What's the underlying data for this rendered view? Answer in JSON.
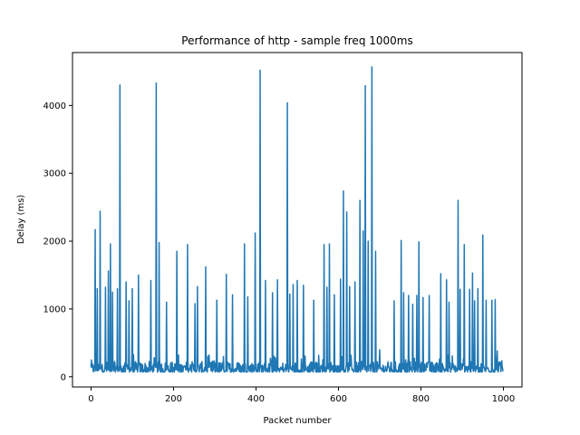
{
  "chart_data": {
    "type": "line",
    "title": "Performance of http - sample freq 1000ms",
    "xlabel": "Packet number",
    "ylabel": "Delay (ms)",
    "xlim": [
      -45,
      1045
    ],
    "ylim": [
      -150,
      4780
    ],
    "xticks": [
      0,
      200,
      400,
      600,
      800,
      1000
    ],
    "yticks": [
      0,
      1000,
      2000,
      3000,
      4000
    ],
    "grid": false,
    "series_color": "#1f77b4",
    "spikes": [
      {
        "x": 10,
        "y": 2170
      },
      {
        "x": 15,
        "y": 1300
      },
      {
        "x": 22,
        "y": 2440
      },
      {
        "x": 35,
        "y": 1320
      },
      {
        "x": 42,
        "y": 1560
      },
      {
        "x": 47,
        "y": 1960
      },
      {
        "x": 52,
        "y": 1250
      },
      {
        "x": 64,
        "y": 1300
      },
      {
        "x": 70,
        "y": 4300
      },
      {
        "x": 85,
        "y": 1400
      },
      {
        "x": 92,
        "y": 1120
      },
      {
        "x": 100,
        "y": 1300
      },
      {
        "x": 115,
        "y": 1500
      },
      {
        "x": 145,
        "y": 1420
      },
      {
        "x": 158,
        "y": 4330
      },
      {
        "x": 165,
        "y": 1980
      },
      {
        "x": 183,
        "y": 1100
      },
      {
        "x": 208,
        "y": 1850
      },
      {
        "x": 234,
        "y": 1950
      },
      {
        "x": 252,
        "y": 1080
      },
      {
        "x": 258,
        "y": 1330
      },
      {
        "x": 278,
        "y": 1620
      },
      {
        "x": 305,
        "y": 1130
      },
      {
        "x": 328,
        "y": 1510
      },
      {
        "x": 343,
        "y": 1210
      },
      {
        "x": 372,
        "y": 1960
      },
      {
        "x": 380,
        "y": 1180
      },
      {
        "x": 398,
        "y": 2120
      },
      {
        "x": 410,
        "y": 4520
      },
      {
        "x": 423,
        "y": 1420
      },
      {
        "x": 440,
        "y": 1240
      },
      {
        "x": 452,
        "y": 1430
      },
      {
        "x": 476,
        "y": 4040
      },
      {
        "x": 482,
        "y": 1220
      },
      {
        "x": 490,
        "y": 1360
      },
      {
        "x": 500,
        "y": 1420
      },
      {
        "x": 515,
        "y": 1350
      },
      {
        "x": 540,
        "y": 1130
      },
      {
        "x": 565,
        "y": 1950
      },
      {
        "x": 572,
        "y": 1320
      },
      {
        "x": 578,
        "y": 1960
      },
      {
        "x": 590,
        "y": 1210
      },
      {
        "x": 605,
        "y": 1440
      },
      {
        "x": 612,
        "y": 2740
      },
      {
        "x": 620,
        "y": 2430
      },
      {
        "x": 627,
        "y": 1330
      },
      {
        "x": 640,
        "y": 1400
      },
      {
        "x": 652,
        "y": 2600
      },
      {
        "x": 660,
        "y": 2150
      },
      {
        "x": 665,
        "y": 4290
      },
      {
        "x": 672,
        "y": 2000
      },
      {
        "x": 681,
        "y": 4570
      },
      {
        "x": 690,
        "y": 1850
      },
      {
        "x": 700,
        "y": 400
      },
      {
        "x": 735,
        "y": 1120
      },
      {
        "x": 752,
        "y": 2010
      },
      {
        "x": 758,
        "y": 1240
      },
      {
        "x": 770,
        "y": 1200
      },
      {
        "x": 780,
        "y": 1070
      },
      {
        "x": 790,
        "y": 1200
      },
      {
        "x": 795,
        "y": 1990
      },
      {
        "x": 805,
        "y": 1170
      },
      {
        "x": 820,
        "y": 1200
      },
      {
        "x": 848,
        "y": 1520
      },
      {
        "x": 862,
        "y": 1430
      },
      {
        "x": 868,
        "y": 1100
      },
      {
        "x": 890,
        "y": 2600
      },
      {
        "x": 895,
        "y": 1290
      },
      {
        "x": 905,
        "y": 1950
      },
      {
        "x": 918,
        "y": 1290
      },
      {
        "x": 925,
        "y": 1530
      },
      {
        "x": 930,
        "y": 1120
      },
      {
        "x": 938,
        "y": 1300
      },
      {
        "x": 950,
        "y": 2090
      },
      {
        "x": 958,
        "y": 1130
      },
      {
        "x": 972,
        "y": 1130
      },
      {
        "x": 980,
        "y": 1140
      },
      {
        "x": 985,
        "y": 380
      }
    ],
    "baseline_min": 70,
    "baseline_max": 330,
    "n_points": 1000
  }
}
